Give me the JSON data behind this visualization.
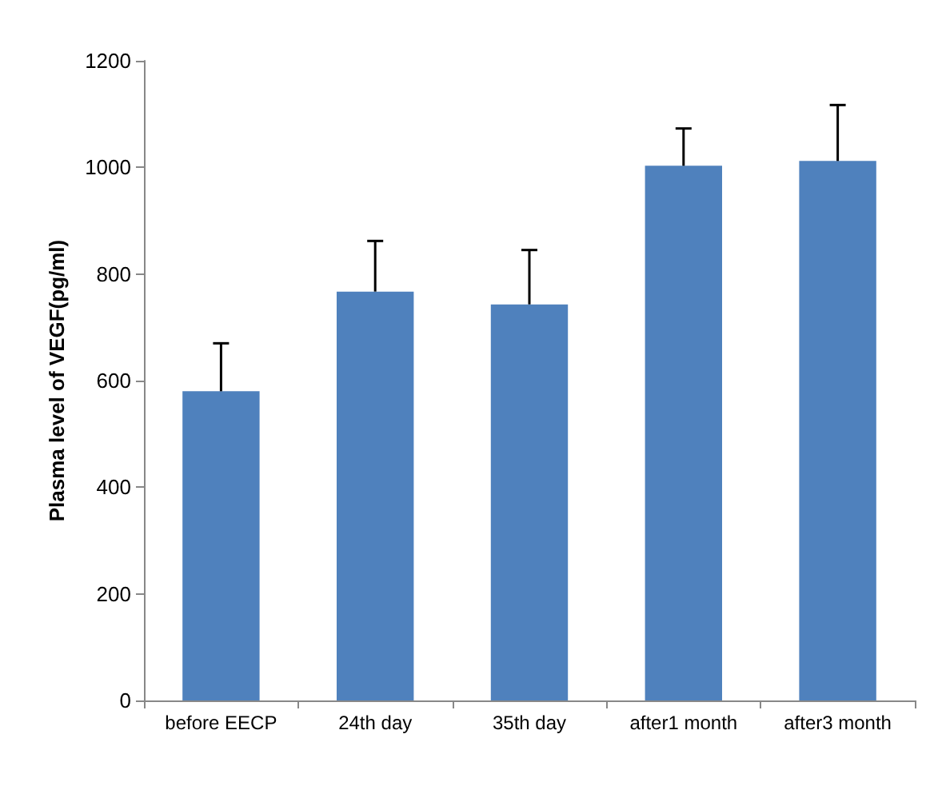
{
  "chart_data": {
    "type": "bar",
    "ylabel": "Plasma level of VEGF(pg/ml)",
    "categories": [
      "before EECP",
      "24th day",
      "35th day",
      "after1 month",
      "after3 month"
    ],
    "values": [
      580,
      767,
      743,
      1003,
      1012
    ],
    "errors": [
      [
        580,
        670
      ],
      [
        767,
        862
      ],
      [
        743,
        845
      ],
      [
        1003,
        1073
      ],
      [
        1012,
        1117
      ]
    ],
    "color": "#4f81bd",
    "ylim": [
      0,
      1200
    ],
    "yticks": [
      0,
      200,
      400,
      600,
      800,
      1000,
      1200
    ],
    "grid": false
  }
}
